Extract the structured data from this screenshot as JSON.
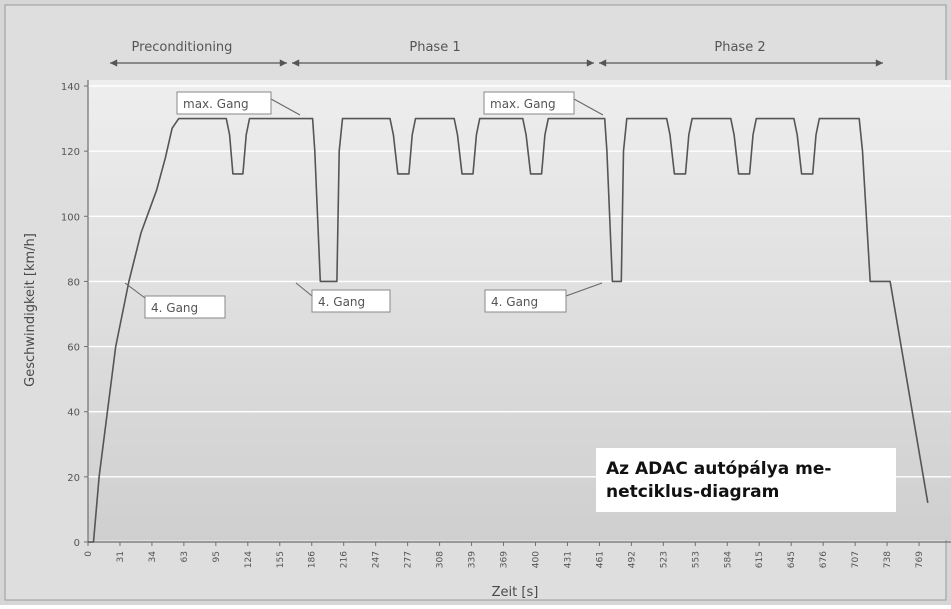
{
  "chart_data": {
    "type": "line",
    "xlabel": "Zeit [s]",
    "ylabel": "Geschwindigkeit [km/h]",
    "ylim": [
      0,
      140
    ],
    "y_ticks": [
      0,
      20,
      40,
      60,
      80,
      100,
      120,
      140
    ],
    "x_tick_labels": [
      "0",
      "31",
      "34",
      "63",
      "95",
      "124",
      "155",
      "186",
      "216",
      "247",
      "277",
      "308",
      "339",
      "369",
      "400",
      "431",
      "461",
      "492",
      "523",
      "553",
      "584",
      "615",
      "645",
      "676",
      "707",
      "738",
      "769"
    ],
    "grid": true,
    "series": [
      {
        "points": [
          [
            0,
            0
          ],
          [
            5,
            0
          ],
          [
            10,
            20
          ],
          [
            25,
            60
          ],
          [
            37,
            80
          ],
          [
            48,
            95
          ],
          [
            62,
            108
          ],
          [
            70,
            118
          ],
          [
            76,
            127
          ],
          [
            82,
            130
          ],
          [
            125,
            130
          ],
          [
            128,
            125
          ],
          [
            131,
            113
          ],
          [
            140,
            113
          ],
          [
            143,
            125
          ],
          [
            146,
            130
          ],
          [
            203,
            130
          ],
          [
            205,
            120
          ],
          [
            210,
            80
          ],
          [
            225,
            80
          ],
          [
            227,
            120
          ],
          [
            230,
            130
          ],
          [
            273,
            130
          ],
          [
            276,
            125
          ],
          [
            280,
            113
          ],
          [
            290,
            113
          ],
          [
            293,
            125
          ],
          [
            296,
            130
          ],
          [
            331,
            130
          ],
          [
            334,
            125
          ],
          [
            338,
            113
          ],
          [
            348,
            113
          ],
          [
            351,
            125
          ],
          [
            354,
            130
          ],
          [
            393,
            130
          ],
          [
            396,
            125
          ],
          [
            400,
            113
          ],
          [
            410,
            113
          ],
          [
            413,
            125
          ],
          [
            416,
            130
          ],
          [
            467,
            130
          ],
          [
            469,
            120
          ],
          [
            474,
            80
          ],
          [
            482,
            80
          ],
          [
            484,
            120
          ],
          [
            487,
            130
          ],
          [
            523,
            130
          ],
          [
            526,
            125
          ],
          [
            530,
            113
          ],
          [
            540,
            113
          ],
          [
            543,
            125
          ],
          [
            546,
            130
          ],
          [
            581,
            130
          ],
          [
            584,
            125
          ],
          [
            588,
            113
          ],
          [
            598,
            113
          ],
          [
            601,
            125
          ],
          [
            604,
            130
          ],
          [
            638,
            130
          ],
          [
            641,
            125
          ],
          [
            645,
            113
          ],
          [
            655,
            113
          ],
          [
            658,
            125
          ],
          [
            661,
            130
          ],
          [
            697,
            130
          ],
          [
            700,
            120
          ],
          [
            707,
            80
          ],
          [
            725,
            80
          ],
          [
            735,
            60
          ],
          [
            750,
            30
          ],
          [
            759,
            12
          ]
        ]
      }
    ],
    "phases": [
      {
        "label": "Preconditioning"
      },
      {
        "label": "Phase 1"
      },
      {
        "label": "Phase 2"
      }
    ],
    "annotations": [
      {
        "text": "max. Gang"
      },
      {
        "text": "4. Gang"
      },
      {
        "text": "max. Gang"
      },
      {
        "text": "4. Gang"
      },
      {
        "text": "4. Gang"
      }
    ],
    "caption": "Az ADAC autópálya menetciklus-diagram",
    "caption_lines": [
      "Az ADAC autópálya me-",
      "netciklus-diagram"
    ],
    "colors": {
      "line": "#555555",
      "plot_bg_top": "#eeeeee",
      "plot_bg_bottom": "#cfcfcf",
      "page_bg": "#d9d9d9"
    }
  }
}
